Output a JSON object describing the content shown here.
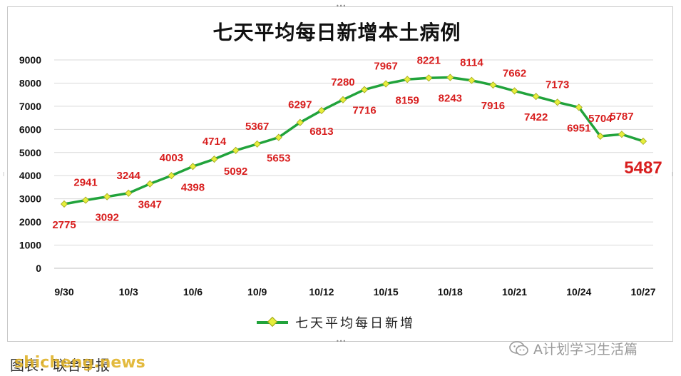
{
  "chart_data": {
    "type": "line",
    "title": "七天平均每日新增本土病例",
    "x": [
      "9/30",
      "10/1",
      "10/2",
      "10/3",
      "10/4",
      "10/5",
      "10/6",
      "10/7",
      "10/8",
      "10/9",
      "10/10",
      "10/11",
      "10/12",
      "10/13",
      "10/14",
      "10/15",
      "10/16",
      "10/17",
      "10/18",
      "10/19",
      "10/20",
      "10/21",
      "10/22",
      "10/23",
      "10/24",
      "10/25",
      "10/26",
      "10/27"
    ],
    "x_tick_labels": [
      "9/30",
      "10/3",
      "10/6",
      "10/9",
      "10/12",
      "10/15",
      "10/18",
      "10/21",
      "10/24",
      "10/27"
    ],
    "y_ticks": [
      "0",
      "1000",
      "2000",
      "3000",
      "4000",
      "5000",
      "6000",
      "7000",
      "8000",
      "9000"
    ],
    "ylim": [
      0,
      9000
    ],
    "grid": true,
    "legend_position": "bottom",
    "series": [
      {
        "name": "七天平均每日新增",
        "color": "#21a33b",
        "marker_color": "#e6ee3c",
        "values": [
          2775,
          2941,
          3092,
          3244,
          3647,
          4003,
          4398,
          4714,
          5092,
          5367,
          5653,
          6297,
          6813,
          7280,
          7716,
          7967,
          8159,
          8221,
          8243,
          8114,
          7916,
          7662,
          7422,
          7173,
          6951,
          5704,
          5787,
          5487
        ]
      }
    ],
    "data_labels": [
      "2775",
      "2941",
      "3092",
      "3244",
      "3647",
      "4003",
      "4398",
      "4714",
      "5092",
      "5367",
      "5653",
      "6297",
      "6813",
      "7280",
      "7716",
      "7967",
      "8159",
      "8221",
      "8243",
      "8114",
      "7916",
      "7662",
      "7422",
      "7173",
      "6951",
      "5704",
      "5787",
      "5487"
    ],
    "label_positions": [
      "below",
      "above",
      "below",
      "above",
      "below",
      "above",
      "below",
      "above",
      "below",
      "above",
      "below",
      "above",
      "below",
      "above",
      "below",
      "above",
      "below",
      "above",
      "below",
      "above",
      "below",
      "above",
      "below",
      "above",
      "below",
      "above",
      "above",
      "right"
    ],
    "label_color": "#d81e1e"
  },
  "footer": {
    "source_text": "图表：联合早报",
    "site_watermark": "shicheng.news",
    "brand": "A计划学习生活篇"
  }
}
